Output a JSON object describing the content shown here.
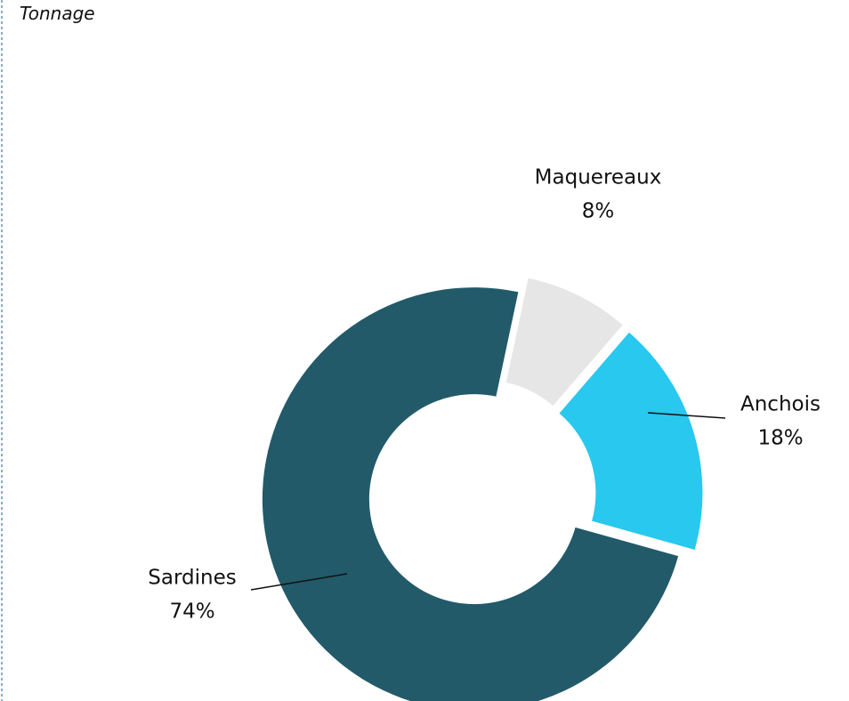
{
  "chart_data": {
    "type": "donut",
    "title": "Tonnage",
    "categories": [
      "Maquereaux",
      "Anchois",
      "Sardines"
    ],
    "values": [
      8,
      18,
      74
    ],
    "value_labels": [
      "8%",
      "18%",
      "74%"
    ],
    "colors": [
      "#e6e6e6",
      "#29c8ef",
      "#225a6a"
    ]
  }
}
